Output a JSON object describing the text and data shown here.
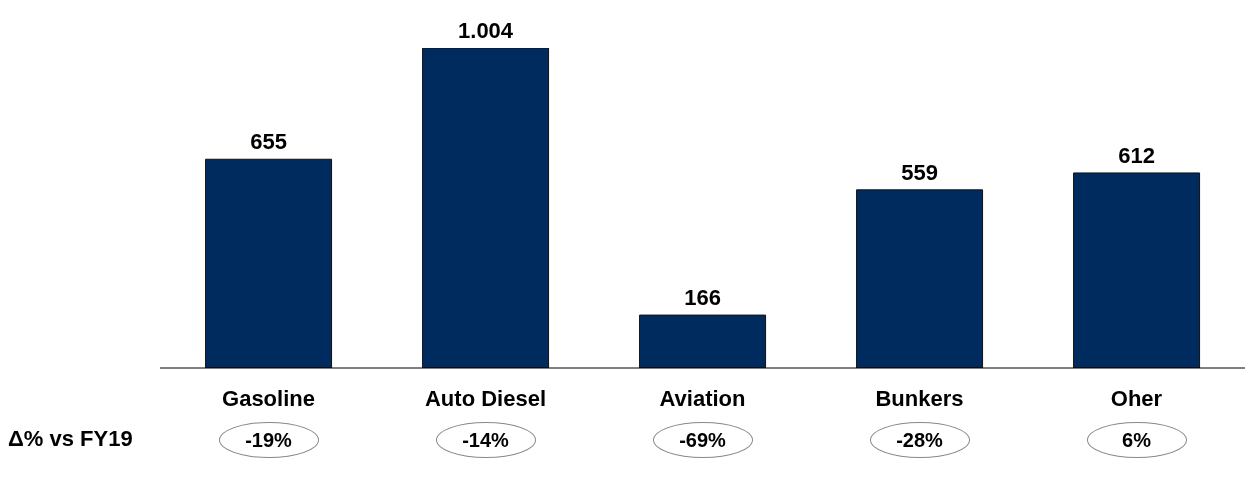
{
  "chart_data": {
    "type": "bar",
    "categories": [
      "Gasoline",
      "Auto Diesel",
      "Aviation",
      "Bunkers",
      "Oher"
    ],
    "values": [
      655,
      1004,
      166,
      559,
      612
    ],
    "value_labels": [
      "655",
      "1.004",
      "166",
      "559",
      "612"
    ],
    "color": "#002b5e",
    "grid": false,
    "legend": false,
    "annotations": [
      "Δ% vs FY19",
      "-19%",
      "-14%",
      "-69%",
      "-28%",
      "6%"
    ]
  }
}
